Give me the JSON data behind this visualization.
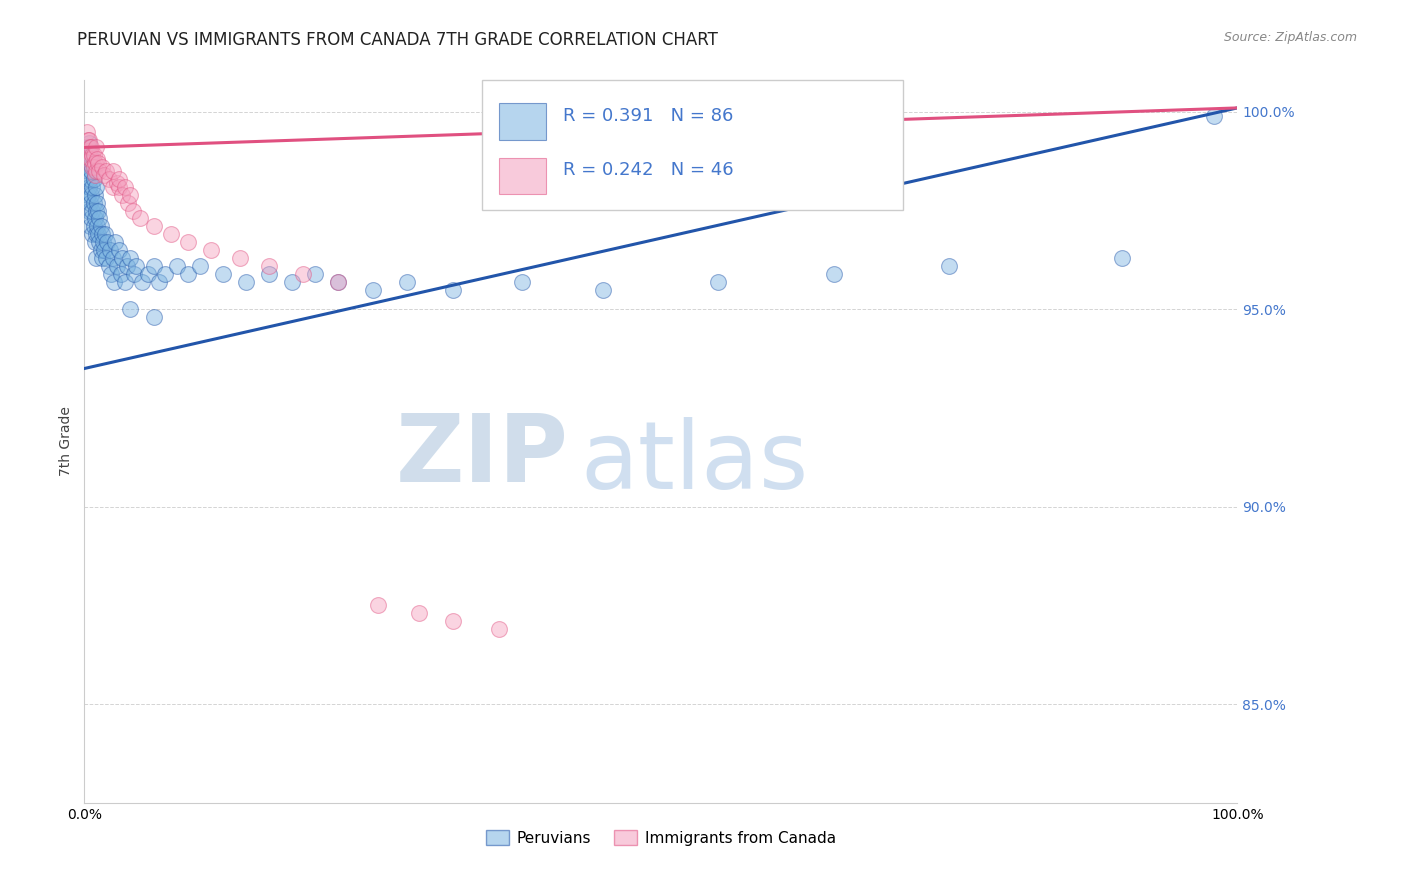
{
  "title": "PERUVIAN VS IMMIGRANTS FROM CANADA 7TH GRADE CORRELATION CHART",
  "source_text": "Source: ZipAtlas.com",
  "ylabel": "7th Grade",
  "xlim": [
    0.0,
    1.0
  ],
  "ylim": [
    0.825,
    1.008
  ],
  "yticks": [
    0.85,
    0.9,
    0.95,
    1.0
  ],
  "ytick_labels": [
    "85.0%",
    "90.0%",
    "95.0%",
    "100.0%"
  ],
  "watermark_zip": "ZIP",
  "watermark_atlas": "atlas",
  "legend_r1": "R = 0.391",
  "legend_n1": "N = 86",
  "legend_r2": "R = 0.242",
  "legend_n2": "N = 46",
  "color_blue": "#7ab3e0",
  "color_pink": "#f4a0be",
  "color_blue_line": "#2255aa",
  "color_pink_line": "#e05080",
  "color_blue_dark": "#1a4a9a",
  "color_pink_dark": "#cc3366",
  "background_color": "#ffffff",
  "grid_color": "#aaaaaa",
  "ytick_color": "#4477cc",
  "legend_entries": [
    "Peruvians",
    "Immigrants from Canada"
  ],
  "blue_scatter_x": [
    0.001,
    0.002,
    0.002,
    0.003,
    0.003,
    0.003,
    0.004,
    0.004,
    0.004,
    0.004,
    0.005,
    0.005,
    0.005,
    0.005,
    0.006,
    0.006,
    0.006,
    0.007,
    0.007,
    0.007,
    0.008,
    0.008,
    0.008,
    0.009,
    0.009,
    0.009,
    0.01,
    0.01,
    0.01,
    0.01,
    0.011,
    0.011,
    0.012,
    0.012,
    0.013,
    0.013,
    0.014,
    0.014,
    0.015,
    0.015,
    0.016,
    0.017,
    0.018,
    0.019,
    0.02,
    0.021,
    0.022,
    0.023,
    0.025,
    0.026,
    0.027,
    0.028,
    0.03,
    0.032,
    0.033,
    0.035,
    0.037,
    0.04,
    0.043,
    0.045,
    0.05,
    0.055,
    0.06,
    0.065,
    0.07,
    0.08,
    0.09,
    0.1,
    0.12,
    0.14,
    0.16,
    0.18,
    0.2,
    0.22,
    0.25,
    0.28,
    0.32,
    0.38,
    0.45,
    0.55,
    0.65,
    0.75,
    0.9,
    0.98,
    0.04,
    0.06
  ],
  "blue_scatter_y": [
    0.987,
    0.983,
    0.978,
    0.991,
    0.985,
    0.979,
    0.992,
    0.987,
    0.981,
    0.975,
    0.989,
    0.983,
    0.977,
    0.971,
    0.985,
    0.979,
    0.973,
    0.981,
    0.975,
    0.969,
    0.983,
    0.977,
    0.971,
    0.979,
    0.973,
    0.967,
    0.981,
    0.975,
    0.969,
    0.963,
    0.977,
    0.971,
    0.975,
    0.969,
    0.973,
    0.967,
    0.971,
    0.965,
    0.969,
    0.963,
    0.967,
    0.965,
    0.969,
    0.963,
    0.967,
    0.961,
    0.965,
    0.959,
    0.963,
    0.957,
    0.967,
    0.961,
    0.965,
    0.959,
    0.963,
    0.957,
    0.961,
    0.963,
    0.959,
    0.961,
    0.957,
    0.959,
    0.961,
    0.957,
    0.959,
    0.961,
    0.959,
    0.961,
    0.959,
    0.957,
    0.959,
    0.957,
    0.959,
    0.957,
    0.955,
    0.957,
    0.955,
    0.957,
    0.955,
    0.957,
    0.959,
    0.961,
    0.963,
    0.999,
    0.95,
    0.948
  ],
  "pink_scatter_x": [
    0.002,
    0.003,
    0.003,
    0.004,
    0.005,
    0.005,
    0.006,
    0.006,
    0.007,
    0.007,
    0.008,
    0.008,
    0.009,
    0.009,
    0.01,
    0.01,
    0.011,
    0.012,
    0.013,
    0.015,
    0.017,
    0.019,
    0.021,
    0.025,
    0.028,
    0.03,
    0.033,
    0.038,
    0.042,
    0.048,
    0.06,
    0.075,
    0.09,
    0.11,
    0.135,
    0.16,
    0.19,
    0.22,
    0.255,
    0.29,
    0.32,
    0.36,
    0.025,
    0.03,
    0.035,
    0.04
  ],
  "pink_scatter_y": [
    0.995,
    0.993,
    0.99,
    0.993,
    0.991,
    0.988,
    0.991,
    0.988,
    0.989,
    0.986,
    0.989,
    0.986,
    0.987,
    0.984,
    0.991,
    0.985,
    0.988,
    0.987,
    0.985,
    0.986,
    0.984,
    0.985,
    0.983,
    0.981,
    0.982,
    0.981,
    0.979,
    0.977,
    0.975,
    0.973,
    0.971,
    0.969,
    0.967,
    0.965,
    0.963,
    0.961,
    0.959,
    0.957,
    0.875,
    0.873,
    0.871,
    0.869,
    0.985,
    0.983,
    0.981,
    0.979
  ],
  "blue_trend_start_x": 0.0,
  "blue_trend_start_y": 0.935,
  "blue_trend_end_x": 1.0,
  "blue_trend_end_y": 1.001,
  "pink_trend_start_x": 0.0,
  "pink_trend_start_y": 0.991,
  "pink_trend_end_x": 1.0,
  "pink_trend_end_y": 1.001,
  "title_fontsize": 12,
  "axis_label_fontsize": 10,
  "tick_fontsize": 10,
  "watermark_fontsize_zip": 68,
  "watermark_fontsize_atlas": 68
}
